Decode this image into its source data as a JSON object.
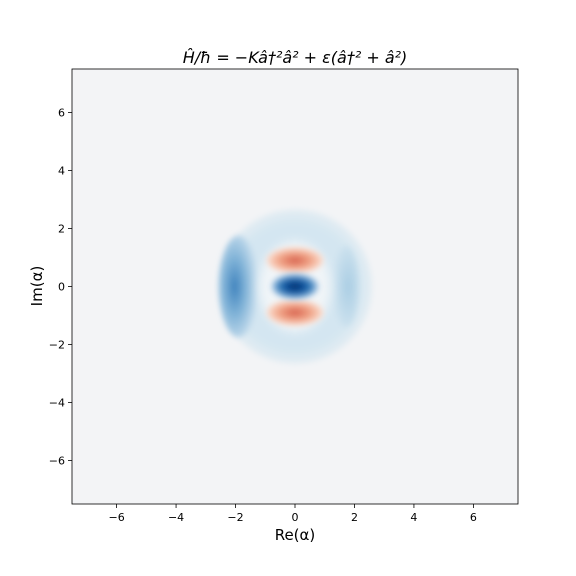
{
  "chart_data": {
    "type": "heatmap",
    "title": "Ĥ/ħ = −Kâ†²â² + ε(â†² + â²)",
    "xlabel": "Re(α)",
    "ylabel": "Im(α)",
    "xlim": [
      -7.5,
      7.5
    ],
    "ylim": [
      -7.5,
      7.5
    ],
    "xticks": [
      -6,
      -4,
      -2,
      0,
      2,
      4,
      6
    ],
    "yticks": [
      -6,
      -4,
      -2,
      0,
      2,
      4,
      6
    ],
    "xtick_labels": [
      "−6",
      "−4",
      "−2",
      "0",
      "2",
      "4",
      "6"
    ],
    "ytick_labels": [
      "−6",
      "−4",
      "−2",
      "0",
      "2",
      "4",
      "6"
    ],
    "colormap": "RdBu",
    "grid": false,
    "colors": {
      "background": "#f3f4f6",
      "negative_extreme": "#08519c",
      "positive_extreme": "#d6604d"
    },
    "features": [
      {
        "label": "central blue lobe",
        "center": [
          0,
          0
        ],
        "sign": "negative"
      },
      {
        "label": "upper red lobe",
        "center": [
          0,
          0.9
        ],
        "sign": "positive"
      },
      {
        "label": "lower red lobe",
        "center": [
          0,
          -0.9
        ],
        "sign": "positive"
      },
      {
        "label": "left blue crescent",
        "center": [
          -1.9,
          0
        ],
        "sign": "negative"
      },
      {
        "label": "right blue crescent",
        "center": [
          1.7,
          0
        ],
        "sign": "negative"
      },
      {
        "label": "outer halo",
        "center": [
          0,
          0
        ],
        "radius": 2.6,
        "sign": "weak negative"
      }
    ]
  }
}
